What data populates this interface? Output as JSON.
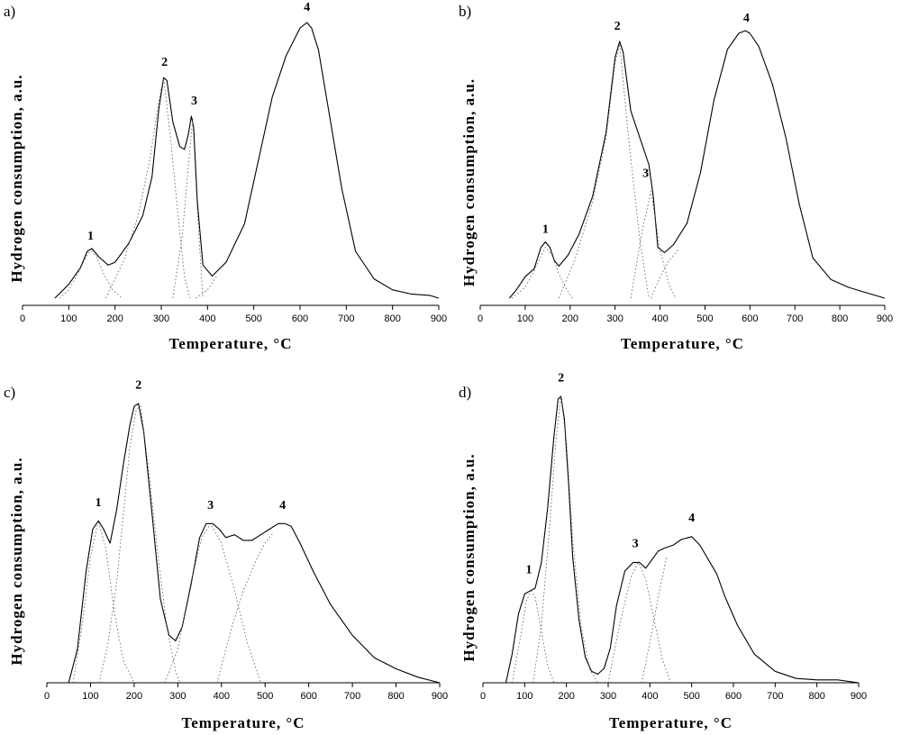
{
  "chart_data": [
    {
      "type": "line",
      "panel_label": "a)",
      "xlabel": "Temperature, °C",
      "ylabel": "Hydrogen consumption, a.u.",
      "xlim": [
        0,
        900
      ],
      "ylim": [
        0,
        1
      ],
      "xticks": [
        "0",
        "100",
        "200",
        "300",
        "400",
        "500",
        "600",
        "700",
        "800",
        "900"
      ],
      "grid": false,
      "series": [
        {
          "name": "TPR profile",
          "x": [
            70,
            100,
            125,
            140,
            150,
            165,
            185,
            200,
            230,
            260,
            280,
            295,
            305,
            312,
            325,
            340,
            350,
            358,
            365,
            370,
            378,
            390,
            410,
            440,
            480,
            510,
            540,
            570,
            600,
            615,
            625,
            640,
            660,
            690,
            720,
            760,
            800,
            840,
            880,
            900
          ],
          "values": [
            0.0,
            0.05,
            0.11,
            0.17,
            0.18,
            0.15,
            0.12,
            0.13,
            0.2,
            0.3,
            0.44,
            0.69,
            0.8,
            0.79,
            0.64,
            0.55,
            0.54,
            0.59,
            0.66,
            0.62,
            0.35,
            0.12,
            0.08,
            0.13,
            0.27,
            0.5,
            0.73,
            0.88,
            0.98,
            1.0,
            0.98,
            0.9,
            0.7,
            0.4,
            0.17,
            0.07,
            0.03,
            0.015,
            0.01,
            0.0
          ]
        },
        {
          "name": "Peak 1",
          "style": "deconvolution",
          "peak": 1,
          "x": [
            80,
            100,
            120,
            140,
            150,
            160,
            175,
            195,
            215
          ],
          "values": [
            0.0,
            0.03,
            0.09,
            0.16,
            0.17,
            0.15,
            0.09,
            0.03,
            0.0
          ]
        },
        {
          "name": "Peak 2",
          "style": "deconvolution",
          "peak": 2,
          "x": [
            180,
            220,
            250,
            275,
            295,
            305,
            320,
            335,
            350,
            362
          ],
          "values": [
            0.0,
            0.14,
            0.3,
            0.5,
            0.72,
            0.8,
            0.58,
            0.32,
            0.08,
            0.0
          ]
        },
        {
          "name": "Peak 3",
          "style": "deconvolution",
          "peak": 3,
          "x": [
            325,
            345,
            358,
            368,
            378,
            390
          ],
          "values": [
            0.0,
            0.22,
            0.47,
            0.65,
            0.32,
            0.0
          ]
        },
        {
          "name": "Peak 4",
          "style": "deconvolution",
          "peak": 4,
          "x": [
            375,
            400,
            420
          ],
          "values": [
            0.0,
            0.03,
            0.08
          ]
        }
      ],
      "annotations": [
        {
          "text": "1",
          "x": 147,
          "y": 0.2
        },
        {
          "text": "2",
          "x": 307,
          "y": 0.83
        },
        {
          "text": "3",
          "x": 371,
          "y": 0.69
        },
        {
          "text": "4",
          "x": 615,
          "y": 1.03
        }
      ]
    },
    {
      "type": "line",
      "panel_label": "b)",
      "xlabel": "Temperature, °C",
      "ylabel": "Hydrogen consumption, a.u.",
      "xlim": [
        0,
        900
      ],
      "ylim": [
        0,
        1
      ],
      "xticks": [
        "0",
        "100",
        "200",
        "300",
        "400",
        "500",
        "600",
        "700",
        "800",
        "900"
      ],
      "grid": false,
      "series": [
        {
          "name": "TPR profile",
          "x": [
            65,
            80,
            100,
            120,
            135,
            145,
            155,
            165,
            175,
            195,
            220,
            250,
            280,
            300,
            310,
            318,
            335,
            355,
            375,
            385,
            395,
            410,
            430,
            460,
            490,
            520,
            550,
            575,
            590,
            600,
            620,
            650,
            680,
            710,
            740,
            780,
            820,
            860,
            900
          ],
          "values": [
            0.0,
            0.03,
            0.08,
            0.11,
            0.19,
            0.21,
            0.19,
            0.14,
            0.12,
            0.16,
            0.24,
            0.38,
            0.62,
            0.9,
            0.96,
            0.92,
            0.7,
            0.6,
            0.5,
            0.38,
            0.19,
            0.17,
            0.2,
            0.28,
            0.47,
            0.74,
            0.93,
            0.99,
            1.0,
            0.99,
            0.94,
            0.8,
            0.6,
            0.35,
            0.15,
            0.07,
            0.04,
            0.02,
            0.0
          ]
        },
        {
          "name": "Peak 1",
          "style": "deconvolution",
          "peak": 1,
          "x": [
            70,
            100,
            125,
            145,
            160,
            175,
            190,
            205
          ],
          "values": [
            0.0,
            0.04,
            0.12,
            0.19,
            0.16,
            0.09,
            0.04,
            0.0
          ]
        },
        {
          "name": "Peak 2",
          "style": "deconvolution",
          "peak": 2,
          "x": [
            175,
            210,
            250,
            280,
            300,
            310,
            330,
            355,
            375
          ],
          "values": [
            0.0,
            0.14,
            0.36,
            0.6,
            0.88,
            0.95,
            0.6,
            0.22,
            0.0
          ]
        },
        {
          "name": "Peak 3",
          "style": "deconvolution",
          "peak": 3,
          "x": [
            335,
            360,
            380,
            400,
            420,
            435
          ],
          "values": [
            0.0,
            0.25,
            0.4,
            0.18,
            0.05,
            0.0
          ]
        },
        {
          "name": "Peak 4",
          "style": "deconvolution",
          "peak": 4,
          "x": [
            380,
            400,
            420,
            440
          ],
          "values": [
            0.0,
            0.08,
            0.14,
            0.18
          ]
        }
      ],
      "annotations": [
        {
          "text": "1",
          "x": 145,
          "y": 0.23
        },
        {
          "text": "2",
          "x": 305,
          "y": 0.99
        },
        {
          "text": "3",
          "x": 368,
          "y": 0.44
        },
        {
          "text": "4",
          "x": 592,
          "y": 1.02
        }
      ]
    },
    {
      "type": "line",
      "panel_label": "c)",
      "xlabel": "Temperature, °C",
      "ylabel": "Hydrogen consumption, a.u.",
      "xlim": [
        0,
        900
      ],
      "ylim": [
        0,
        1
      ],
      "xticks": [
        "0",
        "100",
        "200",
        "300",
        "400",
        "500",
        "600",
        "700",
        "800",
        "900"
      ],
      "grid": false,
      "series": [
        {
          "name": "TPR profile",
          "x": [
            50,
            70,
            90,
            105,
            118,
            130,
            145,
            160,
            175,
            190,
            200,
            210,
            222,
            240,
            260,
            280,
            295,
            310,
            330,
            350,
            365,
            380,
            395,
            410,
            430,
            450,
            470,
            490,
            510,
            530,
            545,
            560,
            580,
            610,
            650,
            700,
            750,
            800,
            850,
            900
          ],
          "values": [
            0.0,
            0.12,
            0.4,
            0.55,
            0.58,
            0.55,
            0.5,
            0.62,
            0.78,
            0.92,
            0.99,
            1.0,
            0.9,
            0.62,
            0.3,
            0.17,
            0.15,
            0.2,
            0.35,
            0.52,
            0.57,
            0.57,
            0.55,
            0.52,
            0.53,
            0.51,
            0.51,
            0.53,
            0.55,
            0.57,
            0.57,
            0.56,
            0.5,
            0.4,
            0.28,
            0.17,
            0.09,
            0.05,
            0.02,
            0.0
          ]
        },
        {
          "name": "Peak 1",
          "style": "deconvolution",
          "peak": 1,
          "x": [
            60,
            80,
            100,
            118,
            135,
            155,
            175,
            200
          ],
          "values": [
            0.0,
            0.2,
            0.45,
            0.58,
            0.48,
            0.25,
            0.08,
            0.0
          ]
        },
        {
          "name": "Peak 2",
          "style": "deconvolution",
          "peak": 2,
          "x": [
            120,
            140,
            160,
            175,
            190,
            205,
            215,
            235,
            255,
            275,
            295,
            305
          ],
          "values": [
            0.0,
            0.14,
            0.36,
            0.6,
            0.84,
            0.98,
            0.99,
            0.74,
            0.45,
            0.2,
            0.04,
            0.0
          ]
        },
        {
          "name": "Peak 3",
          "style": "deconvolution",
          "peak": 3,
          "x": [
            270,
            300,
            330,
            355,
            375,
            400,
            430,
            460,
            490
          ],
          "values": [
            0.0,
            0.12,
            0.36,
            0.52,
            0.57,
            0.5,
            0.33,
            0.14,
            0.0
          ]
        },
        {
          "name": "Peak 4",
          "style": "deconvolution",
          "peak": 4,
          "x": [
            390,
            420,
            450,
            480,
            500,
            520
          ],
          "values": [
            0.0,
            0.18,
            0.33,
            0.44,
            0.5,
            0.54
          ]
        }
      ],
      "annotations": [
        {
          "text": "1",
          "x": 118,
          "y": 0.62
        },
        {
          "text": "2",
          "x": 210,
          "y": 1.04
        },
        {
          "text": "3",
          "x": 375,
          "y": 0.61
        },
        {
          "text": "4",
          "x": 540,
          "y": 0.61
        }
      ]
    },
    {
      "type": "line",
      "panel_label": "d)",
      "xlabel": "Temperature, °C",
      "ylabel": "Hydrogen consumption, a.u.",
      "xlim": [
        0,
        900
      ],
      "ylim": [
        0,
        1
      ],
      "xticks": [
        "0",
        "100",
        "200",
        "300",
        "400",
        "500",
        "600",
        "700",
        "800",
        "900"
      ],
      "grid": false,
      "series": [
        {
          "name": "TPR profile",
          "x": [
            55,
            70,
            85,
            100,
            112,
            125,
            140,
            155,
            170,
            180,
            187,
            195,
            205,
            215,
            230,
            245,
            260,
            275,
            290,
            305,
            320,
            340,
            360,
            375,
            390,
            405,
            420,
            435,
            455,
            475,
            500,
            520,
            540,
            560,
            580,
            610,
            650,
            700,
            750,
            800,
            850,
            900
          ],
          "values": [
            0.0,
            0.1,
            0.24,
            0.31,
            0.32,
            0.33,
            0.42,
            0.61,
            0.86,
            0.99,
            1.0,
            0.92,
            0.7,
            0.44,
            0.22,
            0.09,
            0.04,
            0.03,
            0.05,
            0.12,
            0.27,
            0.39,
            0.42,
            0.42,
            0.4,
            0.43,
            0.46,
            0.47,
            0.48,
            0.5,
            0.51,
            0.48,
            0.43,
            0.38,
            0.3,
            0.2,
            0.1,
            0.04,
            0.015,
            0.01,
            0.01,
            0.0
          ]
        },
        {
          "name": "Peak 1",
          "style": "deconvolution",
          "peak": 1,
          "x": [
            70,
            90,
            105,
            115,
            125,
            140,
            155,
            170
          ],
          "values": [
            0.0,
            0.16,
            0.29,
            0.32,
            0.3,
            0.18,
            0.06,
            0.0
          ]
        },
        {
          "name": "Peak 2",
          "style": "deconvolution",
          "peak": 2,
          "x": [
            120,
            140,
            160,
            175,
            187,
            200,
            215,
            235,
            255,
            275
          ],
          "values": [
            0.0,
            0.2,
            0.55,
            0.85,
            1.0,
            0.84,
            0.5,
            0.2,
            0.05,
            0.0
          ]
        },
        {
          "name": "Peak 3",
          "style": "deconvolution",
          "peak": 3,
          "x": [
            300,
            330,
            355,
            372,
            390,
            410,
            430,
            450
          ],
          "values": [
            0.0,
            0.22,
            0.37,
            0.42,
            0.36,
            0.22,
            0.08,
            0.0
          ]
        },
        {
          "name": "Peak 4",
          "style": "deconvolution",
          "peak": 4,
          "x": [
            380,
            400,
            420,
            440
          ],
          "values": [
            0.0,
            0.14,
            0.3,
            0.44
          ]
        }
      ],
      "annotations": [
        {
          "text": "1",
          "x": 110,
          "y": 0.37
        },
        {
          "text": "2",
          "x": 187,
          "y": 1.04
        },
        {
          "text": "3",
          "x": 365,
          "y": 0.46
        },
        {
          "text": "4",
          "x": 500,
          "y": 0.55
        }
      ]
    }
  ]
}
